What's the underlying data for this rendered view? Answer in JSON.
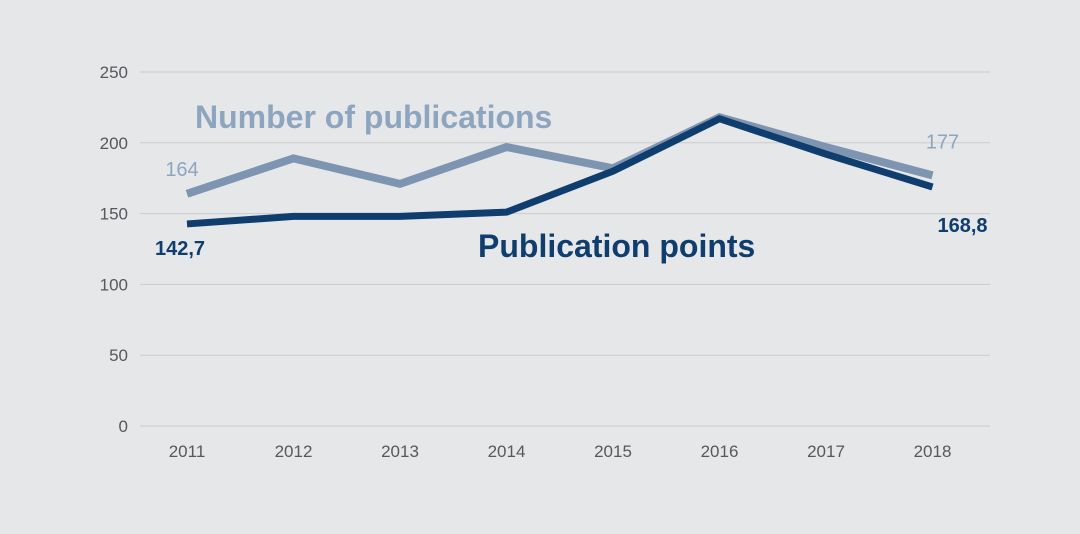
{
  "chart_data": {
    "type": "line",
    "categories": [
      "2011",
      "2012",
      "2013",
      "2014",
      "2015",
      "2016",
      "2017",
      "2018"
    ],
    "ylim": [
      0,
      250
    ],
    "yticks": [
      0,
      50,
      100,
      150,
      200,
      250
    ],
    "grid": true,
    "series": [
      {
        "name": "Number of publications",
        "color": "#7e95b1",
        "values": [
          164,
          189,
          171,
          197,
          182,
          218,
          197,
          177
        ],
        "data_labels": [
          {
            "index": 0,
            "text": "164"
          },
          {
            "index": 7,
            "text": "177"
          }
        ]
      },
      {
        "name": "Publication points",
        "color": "#0f3d6e",
        "values": [
          142.7,
          148,
          148,
          151,
          180,
          217,
          192,
          168.8
        ],
        "data_labels": [
          {
            "index": 0,
            "text": "142,7"
          },
          {
            "index": 7,
            "text": "168,8"
          }
        ]
      }
    ]
  }
}
